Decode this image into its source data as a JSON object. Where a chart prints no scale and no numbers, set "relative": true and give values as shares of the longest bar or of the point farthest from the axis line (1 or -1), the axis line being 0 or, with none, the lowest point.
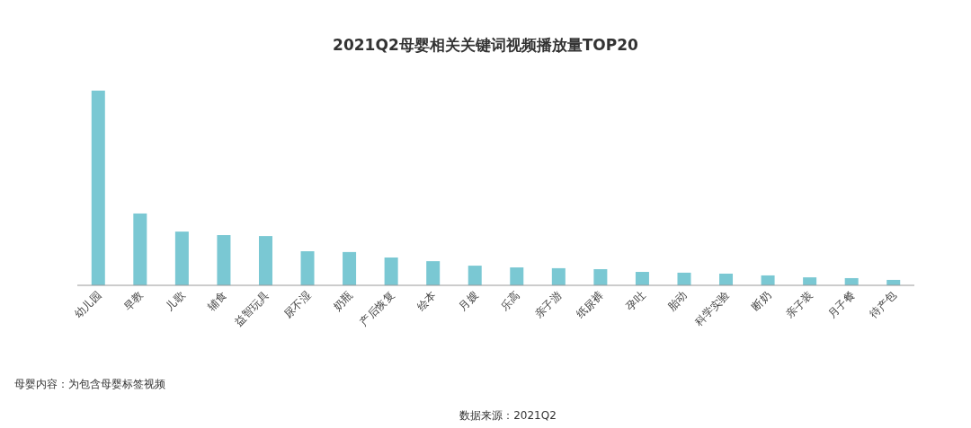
{
  "chart_data": {
    "type": "bar",
    "title": "2021Q2母婴相关关键词视频播放量TOP20",
    "relative": true,
    "categories": [
      "幼儿园",
      "早教",
      "儿歌",
      "辅食",
      "益智玩具",
      "尿不湿",
      "奶瓶",
      "产后恢复",
      "绘本",
      "月嫂",
      "乐高",
      "亲子游",
      "纸尿裤",
      "孕吐",
      "胎动",
      "科学实验",
      "断奶",
      "亲子装",
      "月子餐",
      "待产包"
    ],
    "values": [
      1,
      0.369,
      0.276,
      0.258,
      0.253,
      0.175,
      0.171,
      0.143,
      0.124,
      0.101,
      0.092,
      0.088,
      0.083,
      0.069,
      0.065,
      0.06,
      0.051,
      0.041,
      0.037,
      0.028
    ],
    "color": "#7ac8d3",
    "annotations": [
      "母婴内容：为包含母婴标签视频",
      "数据来源：2021Q2"
    ]
  }
}
